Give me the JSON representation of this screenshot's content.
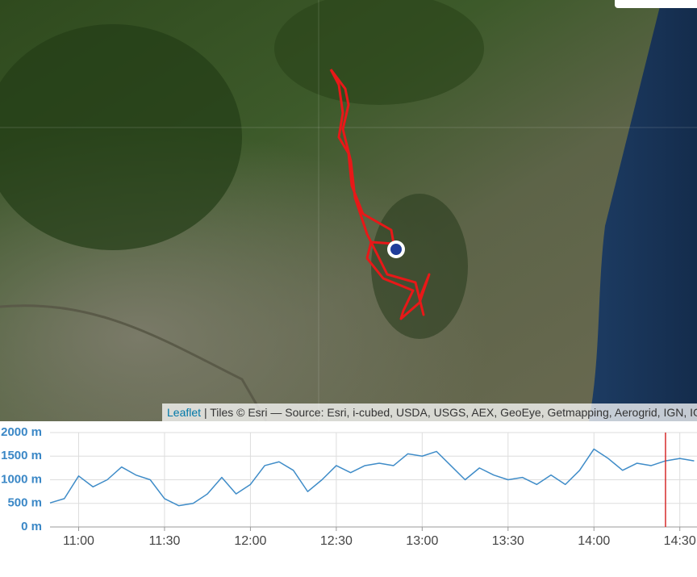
{
  "map": {
    "attribution": {
      "link": "Leaflet",
      "text": "| Tiles © Esri — Source: Esri, i-cubed, USDA, USGS, AEX, GeoEye, Getmapping, Aerogrid, IGN, IGP, UPR-EGP, and the GIS User Community"
    }
  },
  "chart_data": {
    "type": "line",
    "color": "#3f8cc8",
    "x": [
      "10:50",
      "10:55",
      "11:00",
      "11:05",
      "11:10",
      "11:15",
      "11:20",
      "11:25",
      "11:30",
      "11:35",
      "11:40",
      "11:45",
      "11:50",
      "11:55",
      "12:00",
      "12:05",
      "12:10",
      "12:15",
      "12:20",
      "12:25",
      "12:30",
      "12:35",
      "12:40",
      "12:45",
      "12:50",
      "12:55",
      "13:00",
      "13:05",
      "13:10",
      "13:15",
      "13:20",
      "13:25",
      "13:30",
      "13:35",
      "13:40",
      "13:45",
      "13:50",
      "13:55",
      "14:00",
      "14:05",
      "14:10",
      "14:15",
      "14:20",
      "14:25",
      "14:30",
      "14:35"
    ],
    "values": [
      510,
      600,
      1080,
      850,
      1000,
      1270,
      1100,
      1000,
      600,
      450,
      500,
      700,
      1050,
      700,
      900,
      1300,
      1380,
      1200,
      750,
      1000,
      1300,
      1150,
      1300,
      1350,
      1300,
      1550,
      1500,
      1600,
      1300,
      1000,
      1250,
      1100,
      1000,
      1050,
      900,
      1100,
      900,
      1200,
      1650,
      1450,
      1200,
      1350,
      1300,
      1400,
      1450,
      1400
    ],
    "xlim": [
      "10:50",
      "14:36"
    ],
    "xticks": [
      "11:00",
      "11:30",
      "12:00",
      "12:30",
      "13:00",
      "13:30",
      "14:00",
      "14:30"
    ],
    "ylim": [
      0,
      2000
    ],
    "yticks": [
      {
        "value": 0,
        "label": "0 m"
      },
      {
        "value": 500,
        "label": "500 m"
      },
      {
        "value": 1000,
        "label": "1000 m"
      },
      {
        "value": 1500,
        "label": "1500 m"
      },
      {
        "value": 2000,
        "label": "2000 m"
      }
    ],
    "grid": true,
    "cursor_x": "14:25",
    "cursor_color": "#d62b2b"
  }
}
